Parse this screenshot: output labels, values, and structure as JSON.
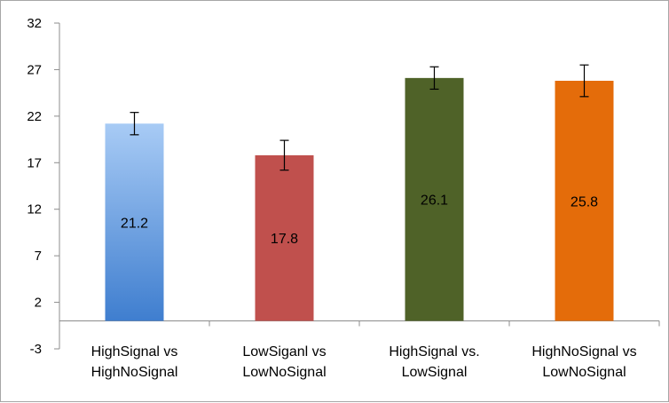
{
  "chart_data": {
    "type": "bar",
    "title": "",
    "xlabel": "",
    "ylabel": "",
    "ylim": [
      -3,
      32
    ],
    "yticks": [
      -3,
      2,
      7,
      12,
      17,
      22,
      27,
      32
    ],
    "ytick_labels": [
      "-3",
      "2",
      "7",
      "12",
      "17",
      "22",
      "27",
      "32"
    ],
    "categories": [
      [
        "HighSignal vs",
        "HighNoSignal"
      ],
      [
        "LowSiganl vs",
        "LowNoSignal"
      ],
      [
        "HighSignal vs.",
        "LowSignal"
      ],
      [
        "HighNoSignal vs",
        "LowNoSignal"
      ]
    ],
    "values": [
      21.2,
      17.8,
      26.1,
      25.8
    ],
    "value_labels": [
      "21.2",
      "17.8",
      "26.1",
      "25.8"
    ],
    "error_bars": [
      1.2,
      1.6,
      1.2,
      1.7
    ],
    "colors": [
      "#4a86d0",
      "#c0504d",
      "#4f6228",
      "#e46c0a"
    ],
    "gradient_top": [
      "#9ec3f2",
      null,
      null,
      null
    ],
    "grid": false,
    "legend": "none"
  }
}
